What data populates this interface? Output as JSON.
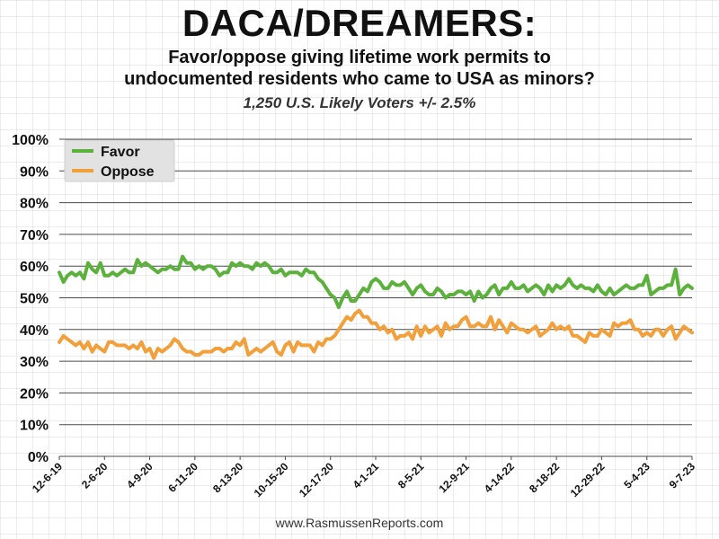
{
  "title": "DACA/DREAMERS:",
  "subtitle_line1": "Favor/oppose giving lifetime work permits to",
  "subtitle_line2": "undocumented residents who came to USA as minors?",
  "subtitle2": "1,250 U.S. Likely Voters +/- 2.5%",
  "source": "www.RasmussenReports.com",
  "colors": {
    "favor": "#5cb13c",
    "oppose": "#f2a03c",
    "grid": "#4a4a4a"
  },
  "chart_data": {
    "type": "line",
    "title": "DACA/DREAMERS:",
    "ylim": [
      0,
      100
    ],
    "yticks": [
      "0%",
      "10%",
      "20%",
      "30%",
      "40%",
      "50%",
      "60%",
      "70%",
      "80%",
      "90%",
      "100%"
    ],
    "xticks": [
      "12-6-19",
      "2-6-20",
      "4-9-20",
      "6-11-20",
      "8-13-20",
      "10-15-20",
      "12-17-20",
      "4-1-21",
      "8-5-21",
      "12-9-21",
      "4-14-22",
      "8-18-22",
      "12-29-22",
      "5-4-23",
      "9-7-23"
    ],
    "grid": "horizontal",
    "legend_position": "top-left",
    "series": [
      {
        "name": "Favor",
        "values": [
          58,
          55,
          57,
          58,
          57,
          58,
          56,
          61,
          59,
          58,
          61,
          57,
          57,
          58,
          57,
          58,
          59,
          58,
          58,
          62,
          60,
          61,
          60,
          59,
          58,
          59,
          59,
          60,
          59,
          59,
          63,
          61,
          61,
          59,
          60,
          59,
          60,
          60,
          59,
          57,
          58,
          58,
          61,
          60,
          61,
          60,
          60,
          59,
          61,
          60,
          61,
          60,
          58,
          58,
          59,
          57,
          58,
          58,
          58,
          57,
          59,
          58,
          58,
          56,
          55,
          53,
          51,
          50,
          47,
          50,
          52,
          49,
          49,
          51,
          53,
          52,
          55,
          56,
          55,
          53,
          53,
          55,
          54,
          54,
          55,
          53,
          51,
          53,
          54,
          52,
          51,
          51,
          53,
          52,
          50,
          51,
          51,
          52,
          52,
          51,
          52,
          49,
          52,
          50,
          51,
          53,
          54,
          51,
          53,
          53,
          55,
          53,
          53,
          54,
          52,
          53,
          54,
          53,
          51,
          54,
          52,
          54,
          53,
          54,
          56,
          54,
          53,
          54,
          53,
          53,
          52,
          54,
          52,
          51,
          53,
          51,
          52,
          53,
          54,
          53,
          53,
          54,
          54,
          57,
          51,
          52,
          53,
          53,
          54,
          54,
          59,
          51,
          53,
          54,
          53
        ]
      },
      {
        "name": "Oppose",
        "values": [
          36,
          38,
          37,
          36,
          35,
          36,
          34,
          36,
          33,
          35,
          34,
          33,
          36,
          36,
          35,
          35,
          35,
          34,
          35,
          34,
          36,
          33,
          34,
          31,
          34,
          33,
          34,
          35,
          37,
          36,
          34,
          33,
          33,
          32,
          32,
          33,
          33,
          33,
          34,
          34,
          33,
          34,
          34,
          36,
          35,
          37,
          32,
          33,
          34,
          33,
          34,
          35,
          36,
          33,
          32,
          35,
          36,
          33,
          36,
          35,
          35,
          35,
          33,
          36,
          35,
          37,
          37,
          38,
          40,
          42,
          44,
          43,
          45,
          46,
          44,
          44,
          42,
          42,
          40,
          41,
          39,
          40,
          37,
          38,
          38,
          39,
          37,
          41,
          38,
          41,
          39,
          40,
          41,
          38,
          42,
          40,
          41,
          41,
          43,
          44,
          41,
          41,
          42,
          41,
          41,
          44,
          40,
          43,
          41,
          39,
          42,
          41,
          40,
          40,
          39,
          40,
          41,
          38,
          39,
          40,
          42,
          40,
          41,
          40,
          41,
          38,
          38,
          37,
          36,
          39,
          38,
          38,
          40,
          39,
          38,
          42,
          41,
          42,
          42,
          43,
          40,
          40,
          38,
          39,
          38,
          40,
          40,
          38,
          40,
          41,
          37,
          39,
          41,
          40,
          39
        ]
      }
    ]
  }
}
